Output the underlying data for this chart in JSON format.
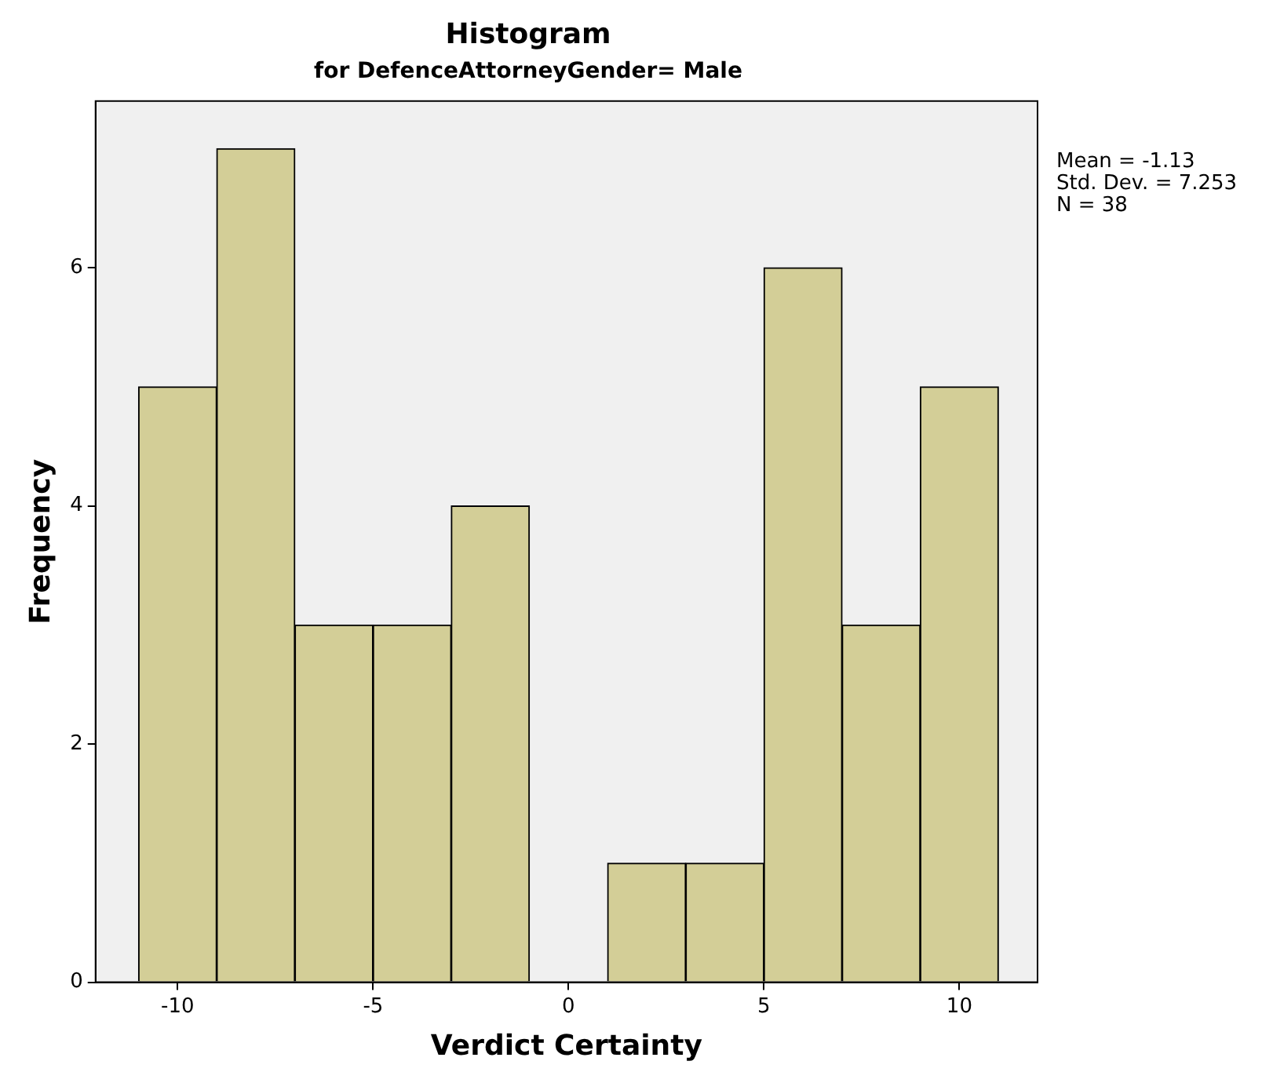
{
  "chart_data": {
    "type": "histogram",
    "title": "Histogram",
    "subtitle": "for DefenceAttorneyGender= Male",
    "xlabel": "Verdict Certainty",
    "ylabel": "Frequency",
    "bins": [
      -11,
      -9,
      -7,
      -5,
      -3,
      -1,
      1,
      3,
      5,
      7,
      9,
      11
    ],
    "values": [
      5,
      7,
      3,
      3,
      4,
      0,
      1,
      1,
      6,
      3,
      5
    ],
    "color": "#d3ce97",
    "xlim": [
      -12.1,
      12
    ],
    "xticks": [
      -10,
      -5,
      0,
      5,
      10
    ],
    "ylim": [
      0,
      7.4
    ],
    "yticks": [
      0,
      2,
      4,
      6
    ],
    "grid": false,
    "legend": false,
    "annotations": [
      "Mean = -1.13",
      "Std. Dev. = 7.253",
      "N = 38"
    ]
  }
}
